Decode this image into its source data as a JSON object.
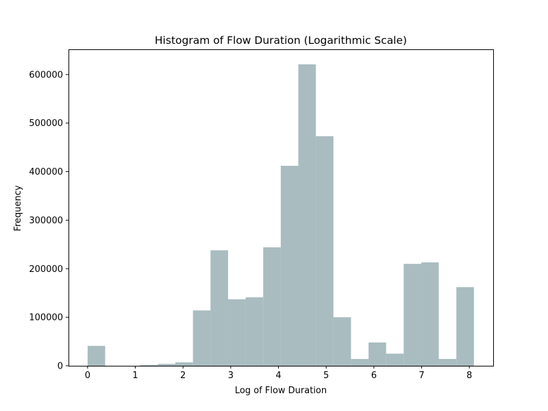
{
  "chart_data": {
    "type": "bar",
    "title": "Histogram of Flow Duration (Logarithmic Scale)",
    "xlabel": "Log of Flow Duration",
    "ylabel": "Frequency",
    "xlim": [
      -0.4,
      8.5
    ],
    "ylim": [
      0,
      652000
    ],
    "x_ticks": [
      0,
      1,
      2,
      3,
      4,
      5,
      6,
      7,
      8
    ],
    "y_ticks": [
      0,
      100000,
      200000,
      300000,
      400000,
      500000,
      600000
    ],
    "bar_color": "#a9bcc0",
    "bins": [
      {
        "start": 0.0,
        "end": 0.368,
        "value": 41000
      },
      {
        "start": 0.368,
        "end": 0.736,
        "value": 0
      },
      {
        "start": 0.736,
        "end": 1.104,
        "value": 0
      },
      {
        "start": 1.104,
        "end": 1.472,
        "value": 1500
      },
      {
        "start": 1.472,
        "end": 1.84,
        "value": 4000
      },
      {
        "start": 1.84,
        "end": 2.208,
        "value": 7000
      },
      {
        "start": 2.208,
        "end": 2.576,
        "value": 114000
      },
      {
        "start": 2.576,
        "end": 2.944,
        "value": 238000
      },
      {
        "start": 2.944,
        "end": 3.312,
        "value": 137000
      },
      {
        "start": 3.312,
        "end": 3.68,
        "value": 141000
      },
      {
        "start": 3.68,
        "end": 4.048,
        "value": 244000
      },
      {
        "start": 4.048,
        "end": 4.416,
        "value": 412000
      },
      {
        "start": 4.416,
        "end": 4.784,
        "value": 621000
      },
      {
        "start": 4.784,
        "end": 5.152,
        "value": 473000
      },
      {
        "start": 5.152,
        "end": 5.52,
        "value": 100000
      },
      {
        "start": 5.52,
        "end": 5.888,
        "value": 14000
      },
      {
        "start": 5.888,
        "end": 6.256,
        "value": 48000
      },
      {
        "start": 6.256,
        "end": 6.624,
        "value": 25000
      },
      {
        "start": 6.624,
        "end": 6.992,
        "value": 210000
      },
      {
        "start": 6.992,
        "end": 7.36,
        "value": 213000
      },
      {
        "start": 7.36,
        "end": 7.728,
        "value": 14000
      },
      {
        "start": 7.728,
        "end": 8.096,
        "value": 162000
      }
    ]
  }
}
